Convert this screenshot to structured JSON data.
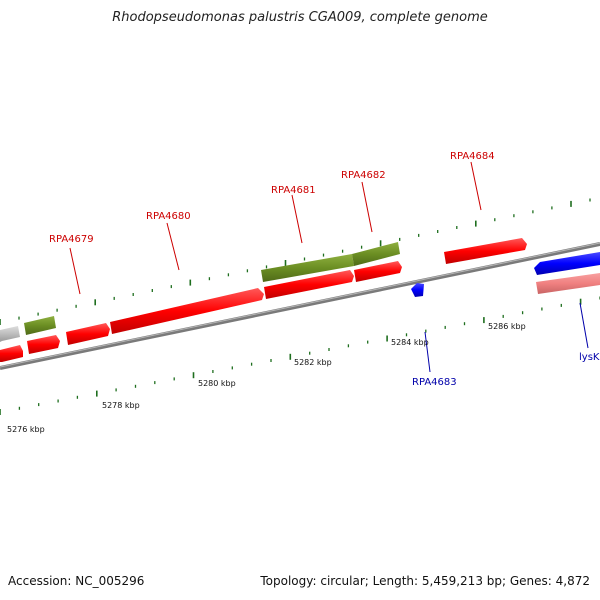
{
  "title": "Rhodopseudomonas palustris CGA009, complete genome",
  "accession": "Accession: NC_005296",
  "summary": "Topology: circular; Length: 5,459,213 bp; Genes: 4,872",
  "colors": {
    "forward_cds": "#ff0000",
    "reverse_cds": "#0000ff",
    "other_feature": "#6b8e23",
    "pseudo_forward": "#bdbdbd",
    "pseudo_reverse": "#f08080",
    "backbone": "#8c8c8c",
    "label_forward": "#cc0000",
    "label_reverse": "#0000aa",
    "tick": "#1e6e1e"
  },
  "kbp_labels": [
    "5276 kbp",
    "5278 kbp",
    "5280 kbp",
    "5282 kbp",
    "5284 kbp",
    "5286 kbp"
  ],
  "gene_labels": [
    "RPA4679",
    "RPA4680",
    "RPA4681",
    "RPA4682",
    "RPA4684",
    "RPA4683",
    "lysK"
  ]
}
